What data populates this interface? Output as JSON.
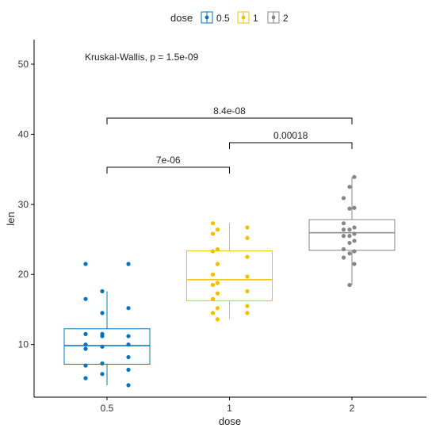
{
  "chart_data": {
    "type": "boxplot",
    "xlabel": "dose",
    "ylabel": "len",
    "ylim": [
      2.5,
      53.5
    ],
    "yticks": [
      10,
      20,
      30,
      40,
      50
    ],
    "categories": [
      "0.5",
      "1",
      "2"
    ],
    "legend": {
      "title": "dose",
      "placement": "top",
      "items": [
        {
          "label": "0.5",
          "color": "#0073C2"
        },
        {
          "label": "1",
          "color": "#EFC000"
        },
        {
          "label": "2",
          "color": "#868686"
        }
      ]
    },
    "annotation": "Kruskal-Wallis, p = 1.5e-09",
    "groups": [
      {
        "name": "0.5",
        "color": "#0073C2",
        "whisker_low": 4.2,
        "q1": 7.2,
        "median": 9.85,
        "q3": 12.25,
        "whisker_high": 17.6,
        "points": [
          11.5,
          21.5,
          21.5,
          17.6,
          16.5,
          15.2,
          14.5,
          11.5,
          11.2,
          11.2,
          10.0,
          10.0,
          9.7,
          9.4,
          8.2,
          7.3,
          7.0,
          6.4,
          5.8,
          5.2,
          4.2
        ]
      },
      {
        "name": "1",
        "color": "#EFC000",
        "whisker_low": 13.6,
        "q1": 16.25,
        "median": 19.25,
        "q3": 23.375,
        "whisker_high": 27.3,
        "points": [
          27.3,
          26.7,
          26.4,
          25.8,
          25.2,
          23.6,
          23.3,
          22.5,
          21.5,
          20.0,
          19.7,
          18.8,
          18.5,
          17.6,
          17.3,
          16.5,
          15.5,
          15.2,
          14.5,
          14.5,
          13.6
        ]
      },
      {
        "name": "2",
        "color": "#868686",
        "whisker_low": 18.5,
        "q1": 23.45,
        "median": 25.95,
        "q3": 27.825,
        "whisker_high": 33.9,
        "points": [
          33.9,
          32.5,
          30.9,
          29.5,
          29.4,
          27.3,
          26.7,
          26.4,
          26.4,
          25.8,
          25.5,
          25.5,
          24.8,
          24.5,
          23.6,
          23.3,
          23.0,
          22.4,
          21.5,
          18.5
        ]
      }
    ],
    "comparisons": [
      {
        "from": "0.5",
        "to": "1",
        "y": 35.3,
        "label": "7e-06"
      },
      {
        "from": "1",
        "to": "2",
        "y": 38.8,
        "label": "0.00018"
      },
      {
        "from": "0.5",
        "to": "2",
        "y": 42.3,
        "label": "8.4e-08"
      }
    ]
  }
}
